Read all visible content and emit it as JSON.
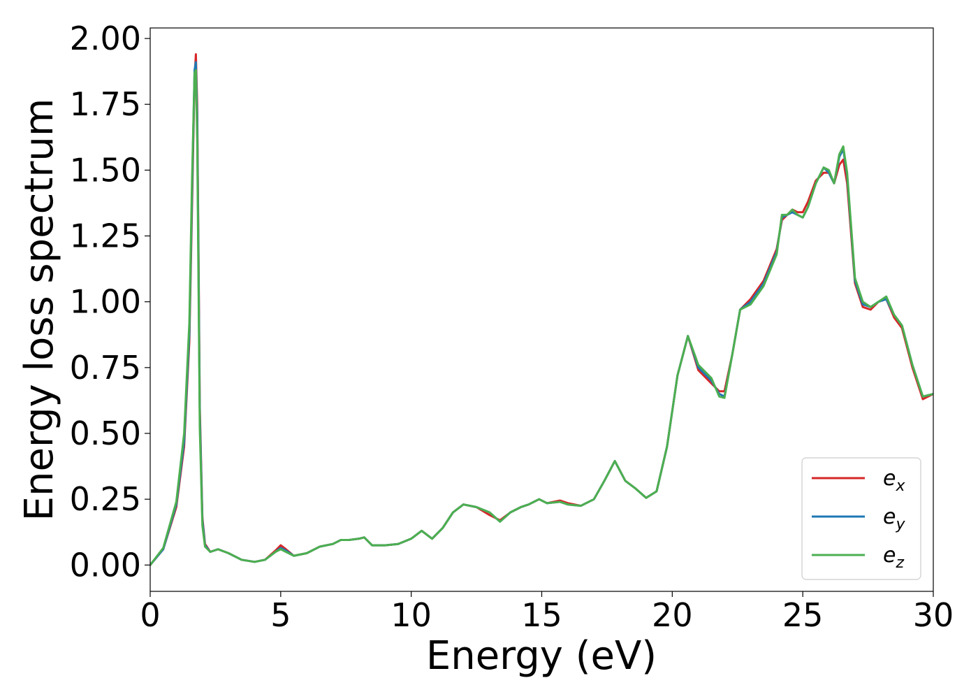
{
  "chart_data": {
    "type": "line",
    "title": "",
    "xlabel": "Energy (eV)",
    "ylabel": "Energy loss spectrum",
    "xlim": [
      0,
      30
    ],
    "ylim": [
      -0.1,
      2.04
    ],
    "xticks": [
      0,
      5,
      10,
      15,
      20,
      25,
      30
    ],
    "xtick_labels": [
      "0",
      "5",
      "10",
      "15",
      "20",
      "25",
      "30"
    ],
    "yticks": [
      0.0,
      0.25,
      0.5,
      0.75,
      1.0,
      1.25,
      1.5,
      1.75,
      2.0
    ],
    "ytick_labels": [
      "0.00",
      "0.25",
      "0.50",
      "0.75",
      "1.00",
      "1.25",
      "1.50",
      "1.75",
      "2.00"
    ],
    "grid": false,
    "legend_position": "lower-right",
    "series": [
      {
        "name": "e",
        "subscript": "x",
        "color": "#d62728",
        "x": [
          0,
          0.5,
          1.0,
          1.3,
          1.5,
          1.6,
          1.7,
          1.75,
          1.8,
          1.85,
          1.9,
          2.0,
          2.1,
          2.3,
          2.6,
          3.0,
          3.5,
          4.0,
          4.4,
          4.8,
          5.0,
          5.2,
          5.5,
          6.0,
          6.5,
          7.0,
          7.3,
          7.6,
          8.0,
          8.2,
          8.5,
          9.0,
          9.5,
          10.0,
          10.4,
          10.8,
          11.2,
          11.6,
          12.0,
          12.5,
          13.0,
          13.4,
          13.8,
          14.2,
          14.5,
          14.9,
          15.2,
          15.7,
          16.0,
          16.5,
          17.0,
          17.4,
          17.8,
          18.2,
          18.6,
          19.0,
          19.4,
          19.8,
          20.2,
          20.6,
          21.0,
          21.5,
          21.8,
          22.0,
          22.3,
          22.6,
          23.0,
          23.5,
          24.0,
          24.2,
          24.4,
          24.6,
          24.8,
          25.0,
          25.2,
          25.5,
          25.8,
          26.0,
          26.2,
          26.4,
          26.55,
          26.7,
          27.0,
          27.3,
          27.6,
          27.9,
          28.2,
          28.5,
          28.8,
          29.2,
          29.6,
          30.0
        ],
        "y": [
          0.0,
          0.06,
          0.22,
          0.45,
          0.85,
          1.35,
          1.85,
          1.94,
          1.75,
          1.2,
          0.6,
          0.18,
          0.08,
          0.05,
          0.06,
          0.045,
          0.02,
          0.012,
          0.02,
          0.055,
          0.075,
          0.06,
          0.035,
          0.045,
          0.07,
          0.08,
          0.095,
          0.095,
          0.1,
          0.105,
          0.075,
          0.075,
          0.08,
          0.1,
          0.13,
          0.1,
          0.14,
          0.2,
          0.23,
          0.22,
          0.19,
          0.17,
          0.2,
          0.22,
          0.23,
          0.25,
          0.235,
          0.245,
          0.235,
          0.225,
          0.25,
          0.32,
          0.395,
          0.32,
          0.29,
          0.255,
          0.28,
          0.45,
          0.72,
          0.87,
          0.74,
          0.69,
          0.66,
          0.66,
          0.8,
          0.97,
          1.01,
          1.08,
          1.2,
          1.31,
          1.33,
          1.35,
          1.34,
          1.34,
          1.38,
          1.46,
          1.49,
          1.49,
          1.45,
          1.52,
          1.54,
          1.45,
          1.07,
          0.98,
          0.97,
          1.0,
          1.01,
          0.94,
          0.9,
          0.75,
          0.63,
          0.65
        ]
      },
      {
        "name": "e",
        "subscript": "y",
        "color": "#1f77b4",
        "x": [
          0,
          0.5,
          1.0,
          1.3,
          1.5,
          1.6,
          1.7,
          1.75,
          1.8,
          1.85,
          1.9,
          2.0,
          2.1,
          2.3,
          2.6,
          3.0,
          3.5,
          4.0,
          4.4,
          4.8,
          5.0,
          5.2,
          5.5,
          6.0,
          6.5,
          7.0,
          7.3,
          7.6,
          8.0,
          8.2,
          8.5,
          9.0,
          9.5,
          10.0,
          10.4,
          10.8,
          11.2,
          11.6,
          12.0,
          12.5,
          13.0,
          13.4,
          13.8,
          14.2,
          14.5,
          14.9,
          15.2,
          15.7,
          16.0,
          16.5,
          17.0,
          17.4,
          17.8,
          18.2,
          18.6,
          19.0,
          19.4,
          19.8,
          20.2,
          20.6,
          21.0,
          21.5,
          21.8,
          22.0,
          22.3,
          22.6,
          23.0,
          23.5,
          24.0,
          24.2,
          24.4,
          24.6,
          24.8,
          25.0,
          25.2,
          25.5,
          25.8,
          26.0,
          26.2,
          26.4,
          26.55,
          26.7,
          27.0,
          27.3,
          27.6,
          27.9,
          28.2,
          28.5,
          28.8,
          29.2,
          29.6,
          30.0
        ],
        "y": [
          0.0,
          0.06,
          0.23,
          0.47,
          0.88,
          1.4,
          1.88,
          1.91,
          1.7,
          1.15,
          0.57,
          0.17,
          0.075,
          0.05,
          0.06,
          0.045,
          0.02,
          0.012,
          0.02,
          0.05,
          0.065,
          0.055,
          0.035,
          0.045,
          0.07,
          0.08,
          0.095,
          0.095,
          0.1,
          0.105,
          0.075,
          0.075,
          0.08,
          0.1,
          0.13,
          0.1,
          0.14,
          0.2,
          0.23,
          0.22,
          0.2,
          0.165,
          0.2,
          0.22,
          0.23,
          0.25,
          0.235,
          0.24,
          0.23,
          0.225,
          0.25,
          0.32,
          0.395,
          0.32,
          0.29,
          0.255,
          0.28,
          0.45,
          0.72,
          0.87,
          0.75,
          0.7,
          0.65,
          0.64,
          0.8,
          0.97,
          1.0,
          1.07,
          1.19,
          1.32,
          1.33,
          1.34,
          1.33,
          1.32,
          1.36,
          1.45,
          1.51,
          1.49,
          1.45,
          1.55,
          1.58,
          1.48,
          1.08,
          0.99,
          0.98,
          1.0,
          1.01,
          0.95,
          0.91,
          0.76,
          0.64,
          0.65
        ]
      },
      {
        "name": "e",
        "subscript": "z",
        "color": "#4caf50",
        "x": [
          0,
          0.5,
          1.0,
          1.3,
          1.5,
          1.6,
          1.7,
          1.75,
          1.8,
          1.85,
          1.9,
          2.0,
          2.1,
          2.3,
          2.6,
          3.0,
          3.5,
          4.0,
          4.4,
          4.8,
          5.0,
          5.2,
          5.5,
          6.0,
          6.5,
          7.0,
          7.3,
          7.6,
          8.0,
          8.2,
          8.5,
          9.0,
          9.5,
          10.0,
          10.4,
          10.8,
          11.2,
          11.6,
          12.0,
          12.5,
          13.0,
          13.4,
          13.8,
          14.2,
          14.5,
          14.9,
          15.2,
          15.7,
          16.0,
          16.5,
          17.0,
          17.4,
          17.8,
          18.2,
          18.6,
          19.0,
          19.4,
          19.8,
          20.2,
          20.6,
          21.0,
          21.5,
          21.8,
          22.0,
          22.3,
          22.6,
          23.0,
          23.5,
          24.0,
          24.2,
          24.4,
          24.6,
          24.8,
          25.0,
          25.2,
          25.5,
          25.8,
          26.0,
          26.2,
          26.4,
          26.55,
          26.7,
          27.0,
          27.3,
          27.6,
          27.9,
          28.2,
          28.5,
          28.8,
          29.2,
          29.6,
          30.0
        ],
        "y": [
          0.0,
          0.065,
          0.24,
          0.5,
          0.92,
          1.45,
          1.87,
          1.88,
          1.62,
          1.08,
          0.52,
          0.15,
          0.07,
          0.05,
          0.06,
          0.045,
          0.02,
          0.012,
          0.02,
          0.05,
          0.06,
          0.05,
          0.035,
          0.045,
          0.07,
          0.08,
          0.095,
          0.095,
          0.1,
          0.105,
          0.075,
          0.075,
          0.08,
          0.1,
          0.13,
          0.1,
          0.14,
          0.2,
          0.23,
          0.22,
          0.2,
          0.165,
          0.2,
          0.22,
          0.23,
          0.25,
          0.235,
          0.24,
          0.23,
          0.225,
          0.25,
          0.32,
          0.395,
          0.32,
          0.29,
          0.255,
          0.28,
          0.45,
          0.72,
          0.87,
          0.76,
          0.71,
          0.64,
          0.635,
          0.8,
          0.97,
          0.99,
          1.06,
          1.18,
          1.33,
          1.33,
          1.35,
          1.33,
          1.32,
          1.36,
          1.45,
          1.51,
          1.5,
          1.45,
          1.56,
          1.59,
          1.49,
          1.09,
          1.0,
          0.98,
          1.0,
          1.02,
          0.95,
          0.91,
          0.76,
          0.64,
          0.65
        ]
      }
    ]
  }
}
